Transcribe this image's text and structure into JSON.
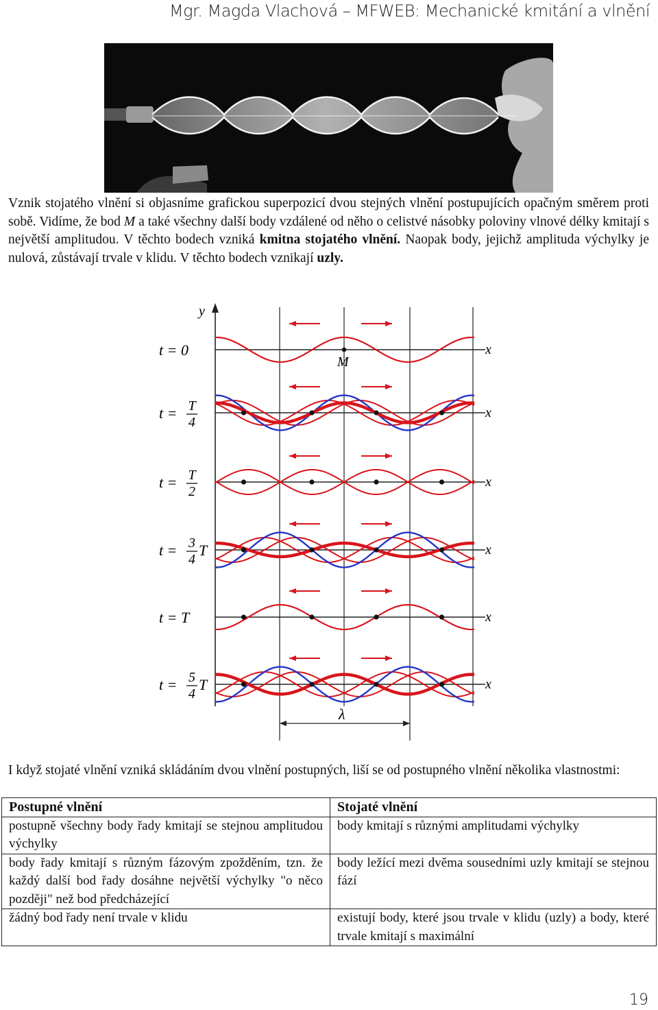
{
  "header": {
    "title": "Mgr. Magda Vlachová – MFWEB: Mechanické kmitání a vlnění"
  },
  "intro": {
    "part1": "Vznik stojatého vlnění si objasníme grafickou superpozicí dvou stejných vlnění postupujících opačným směrem proti sobě. Vidíme, že bod ",
    "point_m": "M",
    "part2": " a také všechny další body vzdálené od něho o celistvé násobky poloviny vlnové délky kmitají s největší amplitudou. V těchto bodech vzniká ",
    "bold1": "kmitna stojatého vlnění.",
    "part3": " Naopak body, jejichž amplituda výchylky je nulová, zůstávají trvale v klidu. V těchto bodech vznikají ",
    "bold2": "uzly."
  },
  "figure": {
    "y_label": "y",
    "x_label": "x",
    "m_label": "M",
    "lambda_label": "λ",
    "rows": [
      {
        "prefix": "t = 0",
        "num": "",
        "den": "",
        "suffix": ""
      },
      {
        "prefix": "t =",
        "num": "T",
        "den": "4",
        "suffix": ""
      },
      {
        "prefix": "t =",
        "num": "T",
        "den": "2",
        "suffix": ""
      },
      {
        "prefix": "t =",
        "num": "3",
        "den": "4",
        "suffix": "T"
      },
      {
        "prefix": "t = T",
        "num": "",
        "den": "",
        "suffix": ""
      },
      {
        "prefix": "t =",
        "num": "5",
        "den": "4",
        "suffix": "T"
      }
    ],
    "colors": {
      "wave": "#d9141b",
      "sum": "#2436c8",
      "nodes": "#111111"
    }
  },
  "comparison": {
    "intro": "I když stojaté vlnění vzniká skládáním dvou vlnění postupných, liší se od postupného vlnění několika vlastnostmi:",
    "headers": [
      "Postupné vlnění",
      "Stojaté vlnění"
    ],
    "rows": [
      [
        "postupně všechny body řady kmitají se stejnou amplitudou výchylky",
        "body kmitají s různými amplitudami výchylky"
      ],
      [
        "body řady kmitají s různým fázovým zpožděním, tzn. že každý další bod řady dosáhne největší výchylky \"o něco později\" než bod předcházející",
        "body ležící mezi dvěma sousedními uzly kmitají se stejnou fází"
      ],
      [
        "žádný bod řady není trvale v klidu",
        "existují body, které jsou trvale v klidu (uzly) a body, které trvale kmitají s maximální"
      ]
    ]
  },
  "page_number": "19"
}
